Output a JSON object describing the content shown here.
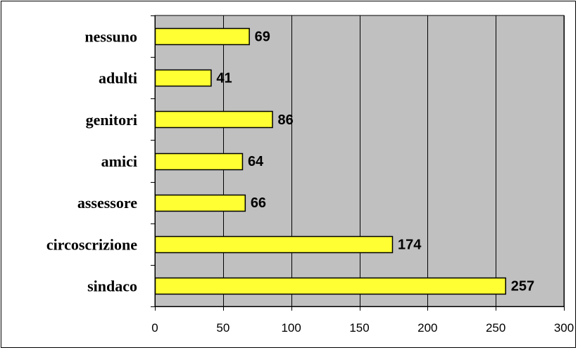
{
  "chart_data": {
    "type": "bar",
    "orientation": "horizontal",
    "title": "",
    "xlabel": "",
    "ylabel": "",
    "categories": [
      "nessuno",
      "adulti",
      "genitori",
      "amici",
      "assessore",
      "circoscrizione",
      "sindaco"
    ],
    "values": [
      69,
      41,
      86,
      64,
      66,
      174,
      257
    ],
    "xlim": [
      0,
      300
    ],
    "xticks": [
      "0",
      "50",
      "100",
      "150",
      "200",
      "250",
      "300"
    ],
    "grid": "vertical",
    "legend": "none",
    "colors": {
      "bar_fill": "#FFFF33",
      "bar_stroke": "#000000",
      "plot_background": "#C0C0C0",
      "chart_background": "#FFFFFF",
      "gridline": "#000000"
    }
  }
}
